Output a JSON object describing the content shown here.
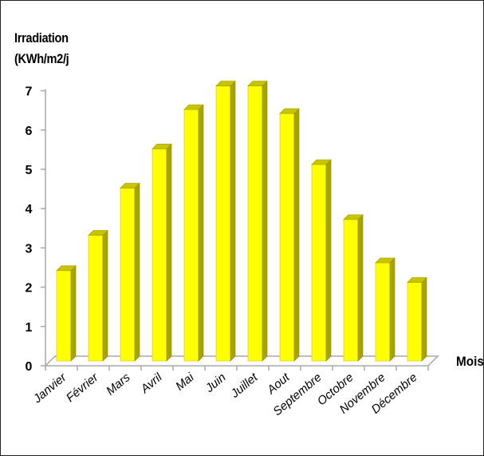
{
  "chart_data": {
    "type": "bar",
    "title": "",
    "ylabel_line1": "Irradiation",
    "ylabel_line2": "(KWh/m2/j",
    "xlabel": "Mois",
    "categories": [
      "Janvier",
      "Février",
      "Mars",
      "Avril",
      "Mai",
      "Juin",
      "Juillet",
      "Aout",
      "Septembre",
      "Octobre",
      "Novembre",
      "Décembre"
    ],
    "values": [
      2.3,
      3.2,
      4.4,
      5.4,
      6.4,
      7.0,
      7.0,
      6.3,
      5.0,
      3.6,
      2.5,
      2.0
    ],
    "ylim": [
      0,
      7
    ],
    "yticks": [
      "0",
      "1",
      "2",
      "3",
      "4",
      "5",
      "6",
      "7"
    ],
    "bar_color": "#ffff00",
    "grid": false,
    "legend": "none"
  }
}
